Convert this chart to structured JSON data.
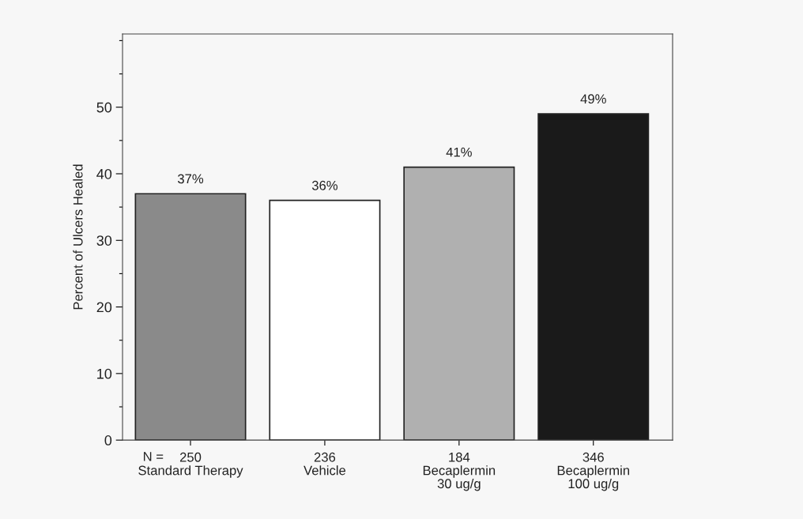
{
  "chart_data": {
    "type": "bar",
    "ylabel": "Percent of Ulcers Healed",
    "categories": [
      "250\nStandard Therapy",
      "236\nVehicle",
      "184\nBecaplermin\n30 ug/g",
      "346\nBecaplermin\n100 ug/g"
    ],
    "values": [
      37,
      36,
      41,
      49
    ],
    "colors": [
      "#8a8a8a",
      "#ffffff",
      "#b0b0b0",
      "#1a1a1a"
    ],
    "value_labels": [
      "37%",
      "36%",
      "41%",
      "49%"
    ],
    "annotations": [
      "N ="
    ],
    "ylim": [
      0,
      61
    ],
    "yticks": [
      0,
      {
        "value": 5,
        "label": null
      },
      10,
      {
        "value": 15,
        "label": null
      },
      20,
      {
        "value": 25,
        "label": null
      },
      30,
      {
        "value": 35,
        "label": null
      },
      40,
      {
        "value": 45,
        "label": null
      },
      50,
      {
        "value": 55,
        "label": null
      },
      {
        "value": 60,
        "label": null
      }
    ],
    "grid": false
  }
}
